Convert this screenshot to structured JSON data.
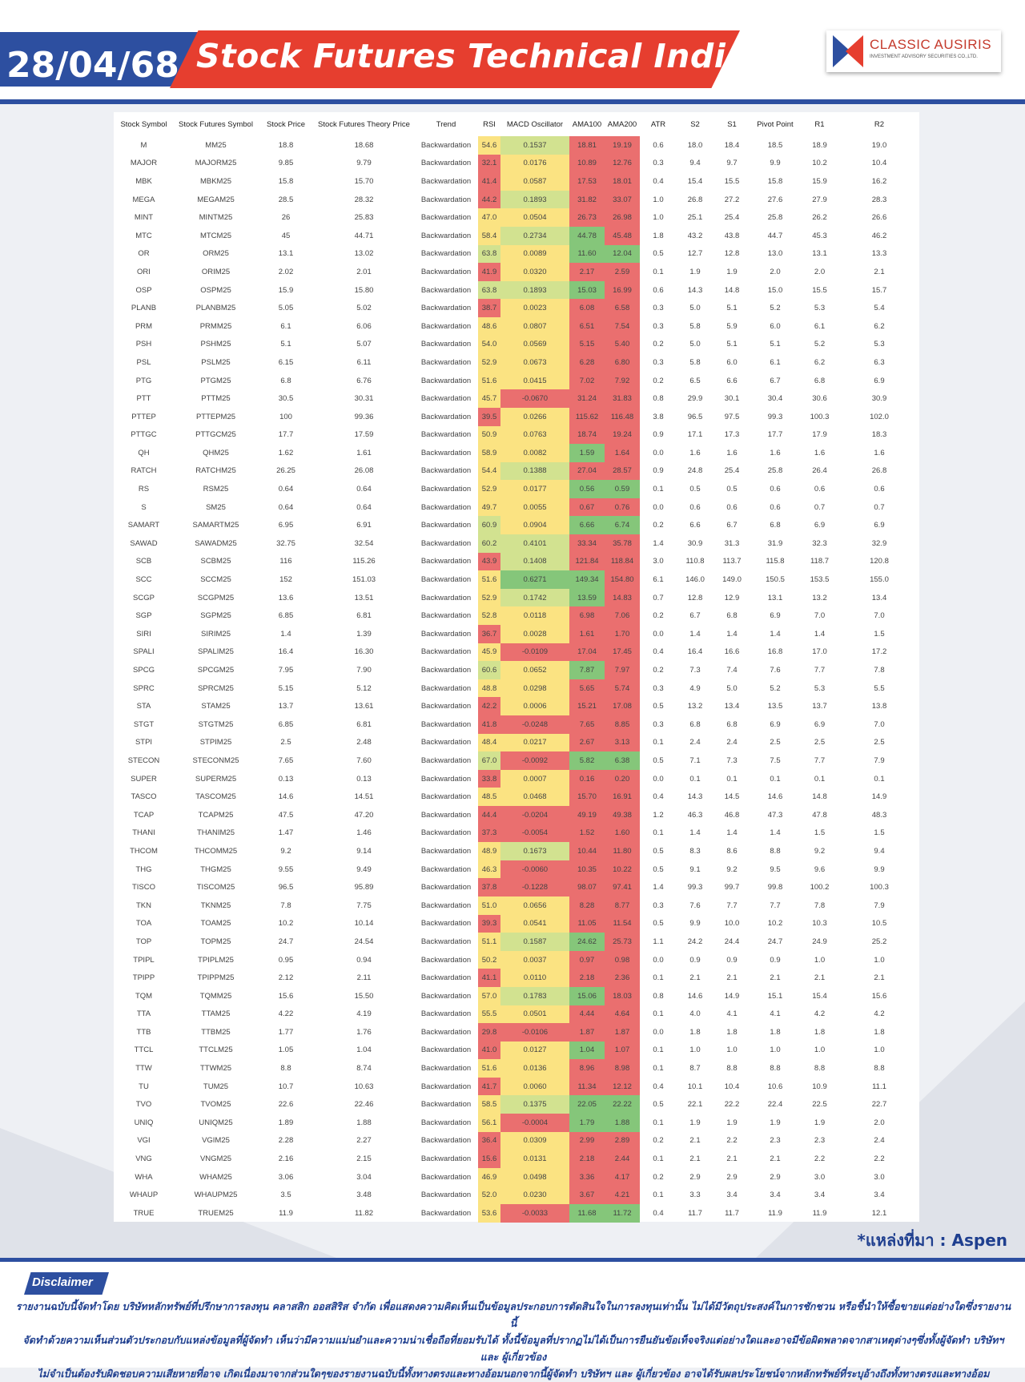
{
  "header": {
    "date": "28/04/68",
    "title": "Stock Futures Technical Indicator",
    "logo_name": "CLASSIC AUSIRIS",
    "logo_sub": "INVESTMENT ADVISORY SECURITIES CO.,LTD."
  },
  "table": {
    "columns": [
      "Stock Symbol",
      "Stock Futures Symbol",
      "Stock Price",
      "Stock Futures Theory Price",
      "Trend",
      "RSI",
      "MACD Oscillator",
      "AMA100",
      "AMA200",
      "ATR",
      "S2",
      "S1",
      "Pivot Point",
      "R1",
      "R2"
    ],
    "rows": [
      [
        "M",
        "MM25",
        "18.8",
        "18.68",
        "Backwardation",
        "54.6",
        "0.1537",
        "18.81",
        "19.19",
        "0.6",
        "18.0",
        "18.4",
        "18.5",
        "18.9",
        "19.0"
      ],
      [
        "MAJOR",
        "MAJORM25",
        "9.85",
        "9.79",
        "Backwardation",
        "32.1",
        "0.0176",
        "10.89",
        "12.76",
        "0.3",
        "9.4",
        "9.7",
        "9.9",
        "10.2",
        "10.4"
      ],
      [
        "MBK",
        "MBKM25",
        "15.8",
        "15.70",
        "Backwardation",
        "41.4",
        "0.0587",
        "17.53",
        "18.01",
        "0.4",
        "15.4",
        "15.5",
        "15.8",
        "15.9",
        "16.2"
      ],
      [
        "MEGA",
        "MEGAM25",
        "28.5",
        "28.32",
        "Backwardation",
        "44.2",
        "0.1893",
        "31.82",
        "33.07",
        "1.0",
        "26.8",
        "27.2",
        "27.6",
        "27.9",
        "28.3"
      ],
      [
        "MINT",
        "MINTM25",
        "26",
        "25.83",
        "Backwardation",
        "47.0",
        "0.0504",
        "26.73",
        "26.98",
        "1.0",
        "25.1",
        "25.4",
        "25.8",
        "26.2",
        "26.6"
      ],
      [
        "MTC",
        "MTCM25",
        "45",
        "44.71",
        "Backwardation",
        "58.4",
        "0.2734",
        "44.78",
        "45.48",
        "1.8",
        "43.2",
        "43.8",
        "44.7",
        "45.3",
        "46.2"
      ],
      [
        "OR",
        "ORM25",
        "13.1",
        "13.02",
        "Backwardation",
        "63.8",
        "0.0089",
        "11.60",
        "12.04",
        "0.5",
        "12.7",
        "12.8",
        "13.0",
        "13.1",
        "13.3"
      ],
      [
        "ORI",
        "ORIM25",
        "2.02",
        "2.01",
        "Backwardation",
        "41.9",
        "0.0320",
        "2.17",
        "2.59",
        "0.1",
        "1.9",
        "1.9",
        "2.0",
        "2.0",
        "2.1"
      ],
      [
        "OSP",
        "OSPM25",
        "15.9",
        "15.80",
        "Backwardation",
        "63.8",
        "0.1893",
        "15.03",
        "16.99",
        "0.6",
        "14.3",
        "14.8",
        "15.0",
        "15.5",
        "15.7"
      ],
      [
        "PLANB",
        "PLANBM25",
        "5.05",
        "5.02",
        "Backwardation",
        "38.7",
        "0.0023",
        "6.08",
        "6.58",
        "0.3",
        "5.0",
        "5.1",
        "5.2",
        "5.3",
        "5.4"
      ],
      [
        "PRM",
        "PRMM25",
        "6.1",
        "6.06",
        "Backwardation",
        "48.6",
        "0.0807",
        "6.51",
        "7.54",
        "0.3",
        "5.8",
        "5.9",
        "6.0",
        "6.1",
        "6.2"
      ],
      [
        "PSH",
        "PSHM25",
        "5.1",
        "5.07",
        "Backwardation",
        "54.0",
        "0.0569",
        "5.15",
        "5.40",
        "0.2",
        "5.0",
        "5.1",
        "5.1",
        "5.2",
        "5.3"
      ],
      [
        "PSL",
        "PSLM25",
        "6.15",
        "6.11",
        "Backwardation",
        "52.9",
        "0.0673",
        "6.28",
        "6.80",
        "0.3",
        "5.8",
        "6.0",
        "6.1",
        "6.2",
        "6.3"
      ],
      [
        "PTG",
        "PTGM25",
        "6.8",
        "6.76",
        "Backwardation",
        "51.6",
        "0.0415",
        "7.02",
        "7.92",
        "0.2",
        "6.5",
        "6.6",
        "6.7",
        "6.8",
        "6.9"
      ],
      [
        "PTT",
        "PTTM25",
        "30.5",
        "30.31",
        "Backwardation",
        "45.7",
        "-0.0670",
        "31.24",
        "31.83",
        "0.8",
        "29.9",
        "30.1",
        "30.4",
        "30.6",
        "30.9"
      ],
      [
        "PTTEP",
        "PTTEPM25",
        "100",
        "99.36",
        "Backwardation",
        "39.5",
        "0.0266",
        "115.62",
        "116.48",
        "3.8",
        "96.5",
        "97.5",
        "99.3",
        "100.3",
        "102.0"
      ],
      [
        "PTTGC",
        "PTTGCM25",
        "17.7",
        "17.59",
        "Backwardation",
        "50.9",
        "0.0763",
        "18.74",
        "19.24",
        "0.9",
        "17.1",
        "17.3",
        "17.7",
        "17.9",
        "18.3"
      ],
      [
        "QH",
        "QHM25",
        "1.62",
        "1.61",
        "Backwardation",
        "58.9",
        "0.0082",
        "1.59",
        "1.64",
        "0.0",
        "1.6",
        "1.6",
        "1.6",
        "1.6",
        "1.6"
      ],
      [
        "RATCH",
        "RATCHM25",
        "26.25",
        "26.08",
        "Backwardation",
        "54.4",
        "0.1388",
        "27.04",
        "28.57",
        "0.9",
        "24.8",
        "25.4",
        "25.8",
        "26.4",
        "26.8"
      ],
      [
        "RS",
        "RSM25",
        "0.64",
        "0.64",
        "Backwardation",
        "52.9",
        "0.0177",
        "0.56",
        "0.59",
        "0.1",
        "0.5",
        "0.5",
        "0.6",
        "0.6",
        "0.6"
      ],
      [
        "S",
        "SM25",
        "0.64",
        "0.64",
        "Backwardation",
        "49.7",
        "0.0055",
        "0.67",
        "0.76",
        "0.0",
        "0.6",
        "0.6",
        "0.6",
        "0.7",
        "0.7"
      ],
      [
        "SAMART",
        "SAMARTM25",
        "6.95",
        "6.91",
        "Backwardation",
        "60.9",
        "0.0904",
        "6.66",
        "6.74",
        "0.2",
        "6.6",
        "6.7",
        "6.8",
        "6.9",
        "6.9"
      ],
      [
        "SAWAD",
        "SAWADM25",
        "32.75",
        "32.54",
        "Backwardation",
        "60.2",
        "0.4101",
        "33.34",
        "35.78",
        "1.4",
        "30.9",
        "31.3",
        "31.9",
        "32.3",
        "32.9"
      ],
      [
        "SCB",
        "SCBM25",
        "116",
        "115.26",
        "Backwardation",
        "43.9",
        "0.1408",
        "121.84",
        "118.84",
        "3.0",
        "110.8",
        "113.7",
        "115.8",
        "118.7",
        "120.8"
      ],
      [
        "SCC",
        "SCCM25",
        "152",
        "151.03",
        "Backwardation",
        "51.6",
        "0.6271",
        "149.34",
        "154.80",
        "6.1",
        "146.0",
        "149.0",
        "150.5",
        "153.5",
        "155.0"
      ],
      [
        "SCGP",
        "SCGPM25",
        "13.6",
        "13.51",
        "Backwardation",
        "52.9",
        "0.1742",
        "13.59",
        "14.83",
        "0.7",
        "12.8",
        "12.9",
        "13.1",
        "13.2",
        "13.4"
      ],
      [
        "SGP",
        "SGPM25",
        "6.85",
        "6.81",
        "Backwardation",
        "52.8",
        "0.0118",
        "6.98",
        "7.06",
        "0.2",
        "6.7",
        "6.8",
        "6.9",
        "7.0",
        "7.0"
      ],
      [
        "SIRI",
        "SIRIM25",
        "1.4",
        "1.39",
        "Backwardation",
        "36.7",
        "0.0028",
        "1.61",
        "1.70",
        "0.0",
        "1.4",
        "1.4",
        "1.4",
        "1.4",
        "1.5"
      ],
      [
        "SPALI",
        "SPALIM25",
        "16.4",
        "16.30",
        "Backwardation",
        "45.9",
        "-0.0109",
        "17.04",
        "17.45",
        "0.4",
        "16.4",
        "16.6",
        "16.8",
        "17.0",
        "17.2"
      ],
      [
        "SPCG",
        "SPCGM25",
        "7.95",
        "7.90",
        "Backwardation",
        "60.6",
        "0.0652",
        "7.87",
        "7.97",
        "0.2",
        "7.3",
        "7.4",
        "7.6",
        "7.7",
        "7.8"
      ],
      [
        "SPRC",
        "SPRCM25",
        "5.15",
        "5.12",
        "Backwardation",
        "48.8",
        "0.0298",
        "5.65",
        "5.74",
        "0.3",
        "4.9",
        "5.0",
        "5.2",
        "5.3",
        "5.5"
      ],
      [
        "STA",
        "STAM25",
        "13.7",
        "13.61",
        "Backwardation",
        "42.2",
        "0.0006",
        "15.21",
        "17.08",
        "0.5",
        "13.2",
        "13.4",
        "13.5",
        "13.7",
        "13.8"
      ],
      [
        "STGT",
        "STGTM25",
        "6.85",
        "6.81",
        "Backwardation",
        "41.8",
        "-0.0248",
        "7.65",
        "8.85",
        "0.3",
        "6.8",
        "6.8",
        "6.9",
        "6.9",
        "7.0"
      ],
      [
        "STPI",
        "STPIM25",
        "2.5",
        "2.48",
        "Backwardation",
        "48.4",
        "0.0217",
        "2.67",
        "3.13",
        "0.1",
        "2.4",
        "2.4",
        "2.5",
        "2.5",
        "2.5"
      ],
      [
        "STECON",
        "STECONM25",
        "7.65",
        "7.60",
        "Backwardation",
        "67.0",
        "-0.0092",
        "5.82",
        "6.38",
        "0.5",
        "7.1",
        "7.3",
        "7.5",
        "7.7",
        "7.9"
      ],
      [
        "SUPER",
        "SUPERM25",
        "0.13",
        "0.13",
        "Backwardation",
        "33.8",
        "0.0007",
        "0.16",
        "0.20",
        "0.0",
        "0.1",
        "0.1",
        "0.1",
        "0.1",
        "0.1"
      ],
      [
        "TASCO",
        "TASCOM25",
        "14.6",
        "14.51",
        "Backwardation",
        "48.5",
        "0.0468",
        "15.70",
        "16.91",
        "0.4",
        "14.3",
        "14.5",
        "14.6",
        "14.8",
        "14.9"
      ],
      [
        "TCAP",
        "TCAPM25",
        "47.5",
        "47.20",
        "Backwardation",
        "44.4",
        "-0.0204",
        "49.19",
        "49.38",
        "1.2",
        "46.3",
        "46.8",
        "47.3",
        "47.8",
        "48.3"
      ],
      [
        "THANI",
        "THANIM25",
        "1.47",
        "1.46",
        "Backwardation",
        "37.3",
        "-0.0054",
        "1.52",
        "1.60",
        "0.1",
        "1.4",
        "1.4",
        "1.4",
        "1.5",
        "1.5"
      ],
      [
        "THCOM",
        "THCOMM25",
        "9.2",
        "9.14",
        "Backwardation",
        "48.9",
        "0.1673",
        "10.44",
        "11.80",
        "0.5",
        "8.3",
        "8.6",
        "8.8",
        "9.2",
        "9.4"
      ],
      [
        "THG",
        "THGM25",
        "9.55",
        "9.49",
        "Backwardation",
        "46.3",
        "-0.0060",
        "10.35",
        "10.22",
        "0.5",
        "9.1",
        "9.2",
        "9.5",
        "9.6",
        "9.9"
      ],
      [
        "TISCO",
        "TISCOM25",
        "96.5",
        "95.89",
        "Backwardation",
        "37.8",
        "-0.1228",
        "98.07",
        "97.41",
        "1.4",
        "99.3",
        "99.7",
        "99.8",
        "100.2",
        "100.3"
      ],
      [
        "TKN",
        "TKNM25",
        "7.8",
        "7.75",
        "Backwardation",
        "51.0",
        "0.0656",
        "8.28",
        "8.77",
        "0.3",
        "7.6",
        "7.7",
        "7.7",
        "7.8",
        "7.9"
      ],
      [
        "TOA",
        "TOAM25",
        "10.2",
        "10.14",
        "Backwardation",
        "39.3",
        "0.0541",
        "11.05",
        "11.54",
        "0.5",
        "9.9",
        "10.0",
        "10.2",
        "10.3",
        "10.5"
      ],
      [
        "TOP",
        "TOPM25",
        "24.7",
        "24.54",
        "Backwardation",
        "51.1",
        "0.1587",
        "24.62",
        "25.73",
        "1.1",
        "24.2",
        "24.4",
        "24.7",
        "24.9",
        "25.2"
      ],
      [
        "TPIPL",
        "TPIPLM25",
        "0.95",
        "0.94",
        "Backwardation",
        "50.2",
        "0.0037",
        "0.97",
        "0.98",
        "0.0",
        "0.9",
        "0.9",
        "0.9",
        "1.0",
        "1.0"
      ],
      [
        "TPIPP",
        "TPIPPM25",
        "2.12",
        "2.11",
        "Backwardation",
        "41.1",
        "0.0110",
        "2.18",
        "2.36",
        "0.1",
        "2.1",
        "2.1",
        "2.1",
        "2.1",
        "2.1"
      ],
      [
        "TQM",
        "TQMM25",
        "15.6",
        "15.50",
        "Backwardation",
        "57.0",
        "0.1783",
        "15.06",
        "18.03",
        "0.8",
        "14.6",
        "14.9",
        "15.1",
        "15.4",
        "15.6"
      ],
      [
        "TTA",
        "TTAM25",
        "4.22",
        "4.19",
        "Backwardation",
        "55.5",
        "0.0501",
        "4.44",
        "4.64",
        "0.1",
        "4.0",
        "4.1",
        "4.1",
        "4.2",
        "4.2"
      ],
      [
        "TTB",
        "TTBM25",
        "1.77",
        "1.76",
        "Backwardation",
        "29.8",
        "-0.0106",
        "1.87",
        "1.87",
        "0.0",
        "1.8",
        "1.8",
        "1.8",
        "1.8",
        "1.8"
      ],
      [
        "TTCL",
        "TTCLM25",
        "1.05",
        "1.04",
        "Backwardation",
        "41.0",
        "0.0127",
        "1.04",
        "1.07",
        "0.1",
        "1.0",
        "1.0",
        "1.0",
        "1.0",
        "1.0"
      ],
      [
        "TTW",
        "TTWM25",
        "8.8",
        "8.74",
        "Backwardation",
        "51.6",
        "0.0136",
        "8.96",
        "8.98",
        "0.1",
        "8.7",
        "8.8",
        "8.8",
        "8.8",
        "8.8"
      ],
      [
        "TU",
        "TUM25",
        "10.7",
        "10.63",
        "Backwardation",
        "41.7",
        "0.0060",
        "11.34",
        "12.12",
        "0.4",
        "10.1",
        "10.4",
        "10.6",
        "10.9",
        "11.1"
      ],
      [
        "TVO",
        "TVOM25",
        "22.6",
        "22.46",
        "Backwardation",
        "58.5",
        "0.1375",
        "22.05",
        "22.22",
        "0.5",
        "22.1",
        "22.2",
        "22.4",
        "22.5",
        "22.7"
      ],
      [
        "UNIQ",
        "UNIQM25",
        "1.89",
        "1.88",
        "Backwardation",
        "56.1",
        "-0.0004",
        "1.79",
        "1.88",
        "0.1",
        "1.9",
        "1.9",
        "1.9",
        "1.9",
        "2.0"
      ],
      [
        "VGI",
        "VGIM25",
        "2.28",
        "2.27",
        "Backwardation",
        "36.4",
        "0.0309",
        "2.99",
        "2.89",
        "0.2",
        "2.1",
        "2.2",
        "2.3",
        "2.3",
        "2.4"
      ],
      [
        "VNG",
        "VNGM25",
        "2.16",
        "2.15",
        "Backwardation",
        "15.6",
        "0.0131",
        "2.18",
        "2.44",
        "0.1",
        "2.1",
        "2.1",
        "2.1",
        "2.2",
        "2.2"
      ],
      [
        "WHA",
        "WHAM25",
        "3.06",
        "3.04",
        "Backwardation",
        "46.9",
        "0.0498",
        "3.36",
        "4.17",
        "0.2",
        "2.9",
        "2.9",
        "2.9",
        "3.0",
        "3.0"
      ],
      [
        "WHAUP",
        "WHAUPM25",
        "3.5",
        "3.48",
        "Backwardation",
        "52.0",
        "0.0230",
        "3.67",
        "4.21",
        "0.1",
        "3.3",
        "3.4",
        "3.4",
        "3.4",
        "3.4"
      ],
      [
        "TRUE",
        "TRUEM25",
        "11.9",
        "11.82",
        "Backwardation",
        "53.6",
        "-0.0033",
        "11.68",
        "11.72",
        "0.4",
        "11.7",
        "11.7",
        "11.9",
        "11.9",
        "12.1"
      ]
    ]
  },
  "colors": {
    "header_blue": "#2d4fa0",
    "title_red": "#e63e2f",
    "cell_red": "#ea6f6f",
    "cell_yellow": "#fbe382",
    "cell_lightgreen": "#d2e290",
    "cell_green": "#85c67a"
  },
  "source": "*แหล่งที่มา : Aspen",
  "disclaimer": {
    "label": "Disclaimer",
    "lines": [
      "รายงานฉบับนี้จัดทำโดย บริษัทหลักทรัพย์ที่ปรึกษาการลงทุน คลาสสิก ออสสิริส จำกัด  เพื่อแสดงความคิดเห็นเป็นข้อมูลประกอบการตัดสินใจในการลงทุนเท่านั้น ไม่ได้มีวัตถุประสงค์ในการชักชวน หรือชี้นำให้ซื้อขายแต่อย่างใดซึ่งรายงานนี้",
      "จัดทำด้วยความเห็นส่วนตัวประกอบกับแหล่งข้อมูลที่ผู้จัดทำ เห็นว่ามีความแม่นยำและความน่าเชื่อถือที่ยอมรับได้ ทั้งนี้ข้อมูลที่ปรากฏไม่ได้เป็นการยืนยันข้อเท็จจริงแต่อย่างใดและอาจมีข้อผิดพลาดจากสาเหตุต่างๆซึ่งทั้งผู้จัดทำ  บริษัทฯ  และ  ผู้เกี่ยวข้อง",
      "ไม่จำเป็นต้องรับผิดชอบความเสียหายที่อาจ เกิดเนื่องมาจากส่วนใดๆของรายงานฉบับนี้ทั้งทางตรงและทางอ้อมนอกจากนี้ผู้จัดทำ บริษัทฯ และ ผู้เกี่ยวข้อง  อาจได้รับผลประโยชน์จากหลักทรัพย์ที่ระบุอ้างถึงทั้งทางตรงและทางอ้อม"
    ]
  }
}
